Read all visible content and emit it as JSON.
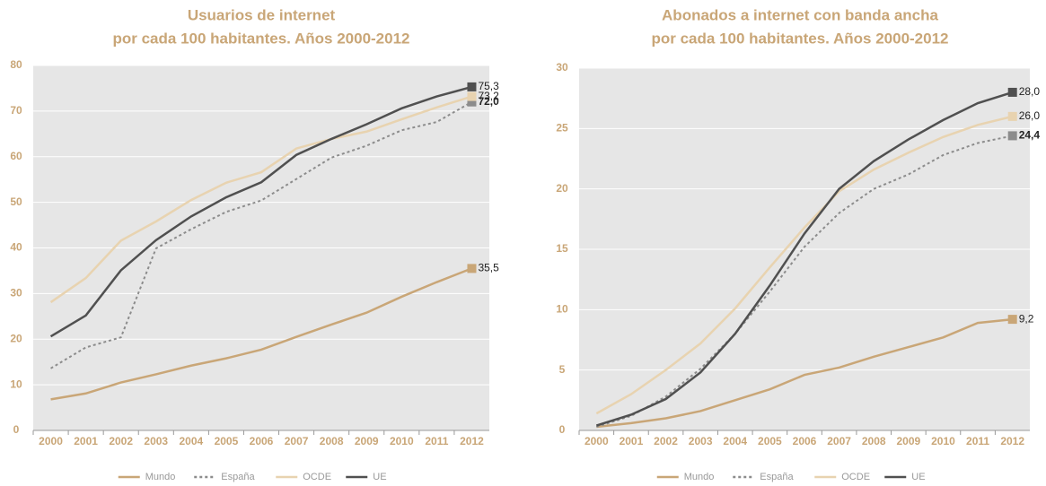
{
  "chart_data": [
    {
      "type": "line",
      "title": [
        "Usuarios de internet",
        "por cada 100 habitantes. Años 2000-2012"
      ],
      "categories": [
        "2000",
        "2001",
        "2002",
        "2003",
        "2004",
        "2005",
        "2006",
        "2007",
        "2008",
        "2009",
        "2010",
        "2011",
        "2012"
      ],
      "ylim": [
        0,
        80
      ],
      "yticks": [
        0,
        10,
        20,
        30,
        40,
        50,
        60,
        70,
        80
      ],
      "grid": true,
      "legend": "bottom",
      "series": [
        {
          "name": "Mundo",
          "color": "#c9a677",
          "values": [
            6.8,
            8.1,
            10.5,
            12.3,
            14.2,
            15.8,
            17.7,
            20.5,
            23.2,
            25.8,
            29.3,
            32.5,
            35.5
          ],
          "value_labels": [
            null,
            null,
            null,
            null,
            null,
            null,
            null,
            null,
            null,
            null,
            null,
            null,
            "35,5"
          ]
        },
        {
          "name": "España",
          "color": "#8c8c8c",
          "dash": true,
          "label_bold": true,
          "values": [
            13.6,
            18.2,
            20.4,
            39.9,
            44.1,
            47.9,
            50.4,
            55.1,
            59.8,
            62.4,
            65.8,
            67.6,
            72.0
          ],
          "value_labels": [
            null,
            null,
            null,
            null,
            null,
            null,
            null,
            null,
            null,
            null,
            null,
            null,
            "72,0"
          ]
        },
        {
          "name": "OCDE",
          "color": "#e8d3b0",
          "values": [
            28.1,
            33.4,
            41.6,
            45.8,
            50.5,
            54.3,
            56.6,
            61.8,
            63.9,
            65.5,
            68.2,
            70.8,
            73.2
          ],
          "value_labels": [
            null,
            null,
            null,
            null,
            null,
            null,
            null,
            null,
            null,
            null,
            null,
            null,
            "73,2"
          ]
        },
        {
          "name": "UE",
          "color": "#505050",
          "values": [
            20.6,
            25.2,
            35.1,
            41.7,
            46.9,
            51.1,
            54.4,
            60.4,
            63.9,
            67.1,
            70.6,
            73.2,
            75.3
          ],
          "value_labels": [
            null,
            null,
            null,
            null,
            null,
            null,
            null,
            null,
            null,
            null,
            null,
            null,
            "75,3"
          ]
        }
      ]
    },
    {
      "type": "line",
      "title": [
        "Abonados a internet con banda ancha",
        "por cada 100 habitantes. Años 2000-2012"
      ],
      "categories": [
        "2000",
        "2001",
        "2002",
        "2003",
        "2004",
        "2005",
        "2006",
        "2007",
        "2008",
        "2009",
        "2010",
        "2011",
        "2012"
      ],
      "ylim": [
        0,
        30
      ],
      "yticks": [
        0,
        5,
        10,
        15,
        20,
        25,
        30
      ],
      "grid": true,
      "legend": "bottom",
      "series": [
        {
          "name": "Mundo",
          "color": "#c9a677",
          "values": [
            0.3,
            0.6,
            1.0,
            1.6,
            2.5,
            3.4,
            4.6,
            5.2,
            6.1,
            6.9,
            7.7,
            8.9,
            9.2
          ],
          "value_labels": [
            null,
            null,
            null,
            null,
            null,
            null,
            null,
            null,
            null,
            null,
            null,
            null,
            "9,2"
          ]
        },
        {
          "name": "España",
          "color": "#8c8c8c",
          "dash": true,
          "label_bold": true,
          "values": [
            0.3,
            1.2,
            2.8,
            5.1,
            8.0,
            11.5,
            15.2,
            18.0,
            20.0,
            21.2,
            22.8,
            23.8,
            24.4
          ],
          "value_labels": [
            null,
            null,
            null,
            null,
            null,
            null,
            null,
            null,
            null,
            null,
            null,
            null,
            "24,4"
          ]
        },
        {
          "name": "OCDE",
          "color": "#e8d3b0",
          "values": [
            1.4,
            3.0,
            5.0,
            7.2,
            10.1,
            13.5,
            16.8,
            19.8,
            21.6,
            23.0,
            24.3,
            25.3,
            26.0
          ],
          "value_labels": [
            null,
            null,
            null,
            null,
            null,
            null,
            null,
            null,
            null,
            null,
            null,
            null,
            "26,0"
          ]
        },
        {
          "name": "UE",
          "color": "#505050",
          "values": [
            0.4,
            1.3,
            2.6,
            4.8,
            8.0,
            12.0,
            16.3,
            20.0,
            22.3,
            24.1,
            25.7,
            27.1,
            28.0
          ],
          "value_labels": [
            null,
            null,
            null,
            null,
            null,
            null,
            null,
            null,
            null,
            null,
            null,
            null,
            "28,0"
          ]
        }
      ]
    }
  ]
}
